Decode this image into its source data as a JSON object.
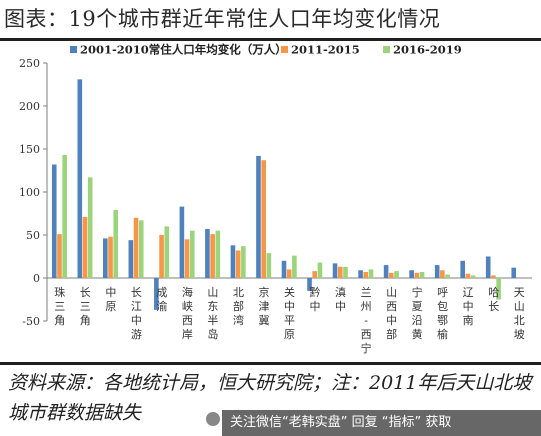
{
  "title": "图表：19个城市群近年常住人口年均变化情况",
  "source_note": "资料来源：各地统计局，恒大研究院；注：2011年后天山北坡城市群数据缺失",
  "watermark": "关注微信“老韩实盘” 回复 “指标” 获取",
  "chart_data": {
    "type": "bar",
    "title": "",
    "xlabel": "",
    "ylabel": "",
    "ylim": [
      -50,
      250
    ],
    "yticks": [
      -50,
      0,
      50,
      100,
      150,
      200,
      250
    ],
    "grid": false,
    "legend_position": "top",
    "categories": [
      "珠三角",
      "长三角",
      "中原",
      "长江中游",
      "成渝",
      "海峡西岸",
      "山东半岛",
      "北部湾",
      "京津冀",
      "关中平原",
      "黔中",
      "滇中",
      "兰州-西宁",
      "山西中部",
      "宁夏沿黄",
      "呼包鄂榆",
      "辽中南",
      "哈长",
      "天山北坡"
    ],
    "series": [
      {
        "name": "2001-2010常住人口年均变化（万人）",
        "color": "#4f81bd",
        "values": [
          132,
          231,
          46,
          44,
          -37,
          83,
          57,
          38,
          142,
          20,
          -15,
          17,
          9,
          15,
          9,
          15,
          20,
          25,
          12
        ]
      },
      {
        "name": "2011-2015",
        "color": "#f79646",
        "values": [
          51,
          71,
          48,
          70,
          50,
          45,
          51,
          32,
          137,
          10,
          8,
          13,
          7,
          6,
          6,
          9,
          5,
          3,
          null
        ]
      },
      {
        "name": "2016-2019",
        "color": "#9bd47a",
        "values": [
          143,
          117,
          79,
          67,
          60,
          55,
          55,
          37,
          29,
          26,
          18,
          13,
          10,
          8,
          7,
          4,
          3,
          -25,
          null
        ]
      }
    ]
  }
}
